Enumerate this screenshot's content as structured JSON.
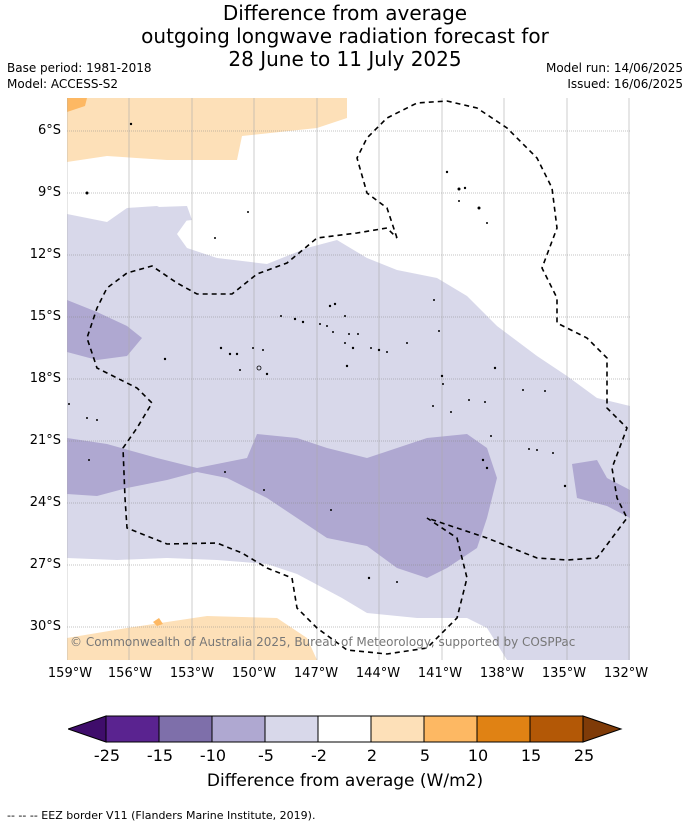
{
  "title": {
    "line1": "Difference from average",
    "line2": "outgoing longwave radiation forecast for",
    "line3": "28 June to 11 July 2025"
  },
  "meta": {
    "base_period": "Base period: 1981-2018",
    "model": "Model: ACCESS-S2",
    "model_run": "Model run: 14/06/2025",
    "issued": "Issued: 16/06/2025"
  },
  "map": {
    "lat_labels": [
      "6°S",
      "9°S",
      "12°S",
      "15°S",
      "18°S",
      "21°S",
      "24°S",
      "27°S",
      "30°S"
    ],
    "lon_labels": [
      "159°W",
      "156°W",
      "153°W",
      "150°W",
      "147°W",
      "144°W",
      "141°W",
      "138°W",
      "135°W",
      "132°W"
    ],
    "copyright": "© Commonwealth of Australia 2025, Bureau of Meteorology, supported by COSPPac"
  },
  "colorbar": {
    "title": "Difference from average (W/m2)",
    "tick_labels": [
      "-25",
      "-15",
      "-10",
      "-5",
      "-2",
      "2",
      "5",
      "10",
      "15",
      "25"
    ],
    "colors": [
      "#3f0d6b",
      "#5a2390",
      "#7e6faa",
      "#afa8d1",
      "#d8d8ea",
      "#ffffff",
      "#fde0b8",
      "#fdb863",
      "#e08214",
      "#b35806",
      "#7f3b08"
    ]
  },
  "footer": "--  --  -- EEZ border V11 (Flanders Marine Institute, 2019)."
}
